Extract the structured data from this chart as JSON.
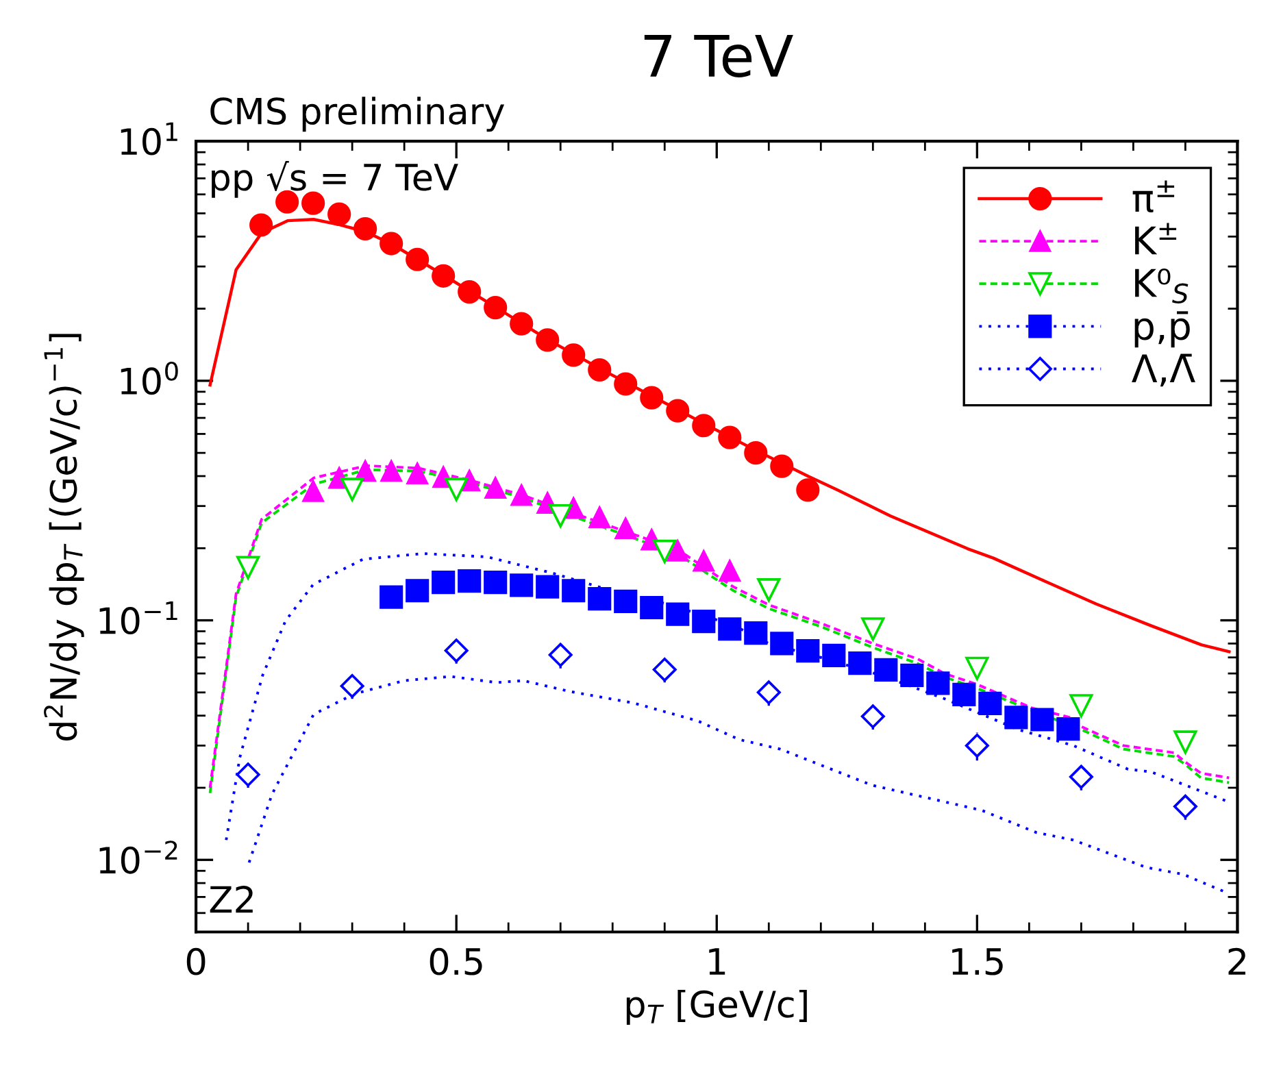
{
  "chart_data": {
    "type": "scatter",
    "title": "7 TeV",
    "xlabel": "p$_{T}$ [GeV/c]",
    "ylabel": "d$^{2}$N/dy dp$_{T}$ [(GeV/c)$^{−1}$]",
    "annotations": [
      "CMS preliminary",
      "pp √s = 7 TeV",
      "Z2"
    ],
    "log": "y",
    "xlim": [
      0,
      2
    ],
    "ylim": [
      0.005,
      10
    ],
    "xticks": [
      0,
      0.5,
      1,
      1.5,
      2
    ],
    "yticks": [
      {
        "value": 0.01,
        "label": "10$^{−2}$"
      },
      {
        "value": 0.1,
        "label": "10$^{−1}$"
      },
      {
        "value": 1,
        "label": "10$^{0}$"
      },
      {
        "value": 10,
        "label": "10$^{1}$"
      }
    ],
    "grid": false,
    "legend": "top right",
    "series": [
      {
        "type": "line",
        "color": "#ff0000",
        "line_style": "solid",
        "marker": "none",
        "x": [
          0.027,
          0.077,
          0.126,
          0.176,
          0.226,
          0.276,
          0.327,
          0.377,
          0.477,
          0.577,
          0.677,
          0.777,
          0.877,
          0.977,
          1.077,
          1.175,
          1.232,
          1.333,
          1.482,
          1.531,
          1.623,
          1.729,
          1.834,
          1.931,
          1.984
        ],
        "values": [
          0.96,
          2.91,
          4.14,
          4.66,
          4.72,
          4.48,
          4.18,
          3.71,
          2.75,
          2.02,
          1.48,
          1.12,
          0.86,
          0.66,
          0.51,
          0.4,
          0.35,
          0.273,
          0.199,
          0.182,
          0.148,
          0.117,
          0.095,
          0.079,
          0.074
        ]
      },
      {
        "type": "line",
        "color": "#ff00ff",
        "line_style": "dashed",
        "marker": "none",
        "x": [
          0.027,
          0.077,
          0.126,
          0.226,
          0.327,
          0.427,
          0.527,
          0.627,
          0.727,
          0.827,
          0.927,
          1.032,
          1.1,
          1.201,
          1.3,
          1.386,
          1.437,
          1.5,
          1.606,
          1.685,
          1.7,
          1.781,
          1.878,
          1.9,
          1.93,
          1.984
        ],
        "values": [
          0.02,
          0.129,
          0.264,
          0.393,
          0.442,
          0.432,
          0.384,
          0.333,
          0.279,
          0.234,
          0.196,
          0.138,
          0.116,
          0.097,
          0.08,
          0.069,
          0.06,
          0.054,
          0.043,
          0.039,
          0.036,
          0.03,
          0.028,
          0.0256,
          0.023,
          0.022
        ]
      },
      {
        "type": "line",
        "color": "#00dd00",
        "line_style": "dashed",
        "marker": "none",
        "x": [
          0.027,
          0.077,
          0.126,
          0.226,
          0.327,
          0.427,
          0.527,
          0.627,
          0.727,
          0.827,
          0.927,
          1.032,
          1.1,
          1.201,
          1.3,
          1.386,
          1.437,
          1.5,
          1.606,
          1.685,
          1.7,
          1.781,
          1.878,
          1.9,
          1.93,
          1.984
        ],
        "values": [
          0.019,
          0.125,
          0.255,
          0.37,
          0.425,
          0.42,
          0.375,
          0.325,
          0.27,
          0.226,
          0.188,
          0.133,
          0.112,
          0.094,
          0.077,
          0.066,
          0.058,
          0.052,
          0.042,
          0.036,
          0.035,
          0.029,
          0.027,
          0.025,
          0.022,
          0.021
        ]
      },
      {
        "type": "line",
        "color": "#0000ff",
        "line_style": "dotted",
        "marker": "none",
        "x": [
          0.058,
          0.084,
          0.128,
          0.172,
          0.225,
          0.321,
          0.436,
          0.559,
          0.682,
          0.788,
          0.911,
          1.034,
          1.1,
          1.21,
          1.315,
          1.438,
          1.579,
          1.685,
          1.79,
          1.834,
          1.913,
          1.979
        ],
        "values": [
          0.0121,
          0.0267,
          0.059,
          0.0996,
          0.141,
          0.18,
          0.19,
          0.184,
          0.158,
          0.135,
          0.116,
          0.095,
          0.08,
          0.069,
          0.059,
          0.047,
          0.035,
          0.03,
          0.0239,
          0.0233,
          0.02,
          0.0176
        ]
      },
      {
        "type": "line",
        "color": "#0000ff",
        "line_style": "dotted",
        "marker": "none",
        "x": [
          0.102,
          0.146,
          0.226,
          0.304,
          0.4,
          0.489,
          0.577,
          0.629,
          0.717,
          0.84,
          0.964,
          1.043,
          1.122,
          1.298,
          1.509,
          1.614,
          1.685,
          1.825,
          1.896,
          1.979
        ],
        "values": [
          0.00975,
          0.0188,
          0.0405,
          0.0493,
          0.056,
          0.0583,
          0.055,
          0.056,
          0.0505,
          0.0452,
          0.038,
          0.0318,
          0.029,
          0.0205,
          0.0161,
          0.013,
          0.0121,
          0.0093,
          0.0087,
          0.0073
        ]
      },
      {
        "name": "π$^{±}$",
        "color": "#ff0000",
        "marker": "circle",
        "x": [
          0.125,
          0.175,
          0.225,
          0.275,
          0.325,
          0.375,
          0.425,
          0.475,
          0.525,
          0.575,
          0.625,
          0.675,
          0.725,
          0.775,
          0.825,
          0.875,
          0.925,
          0.975,
          1.025,
          1.075,
          1.125,
          1.175
        ],
        "values": [
          4.47,
          5.58,
          5.51,
          4.96,
          4.31,
          3.74,
          3.21,
          2.74,
          2.35,
          2.02,
          1.73,
          1.48,
          1.28,
          1.11,
          0.97,
          0.85,
          0.75,
          0.65,
          0.58,
          0.5,
          0.44,
          0.35
        ]
      },
      {
        "name": "K$^{±}$",
        "color": "#ff00ff",
        "marker": "triangle",
        "x": [
          0.225,
          0.275,
          0.325,
          0.375,
          0.425,
          0.475,
          0.525,
          0.575,
          0.625,
          0.675,
          0.725,
          0.775,
          0.825,
          0.875,
          0.925,
          0.975,
          1.025
        ],
        "values": [
          0.346,
          0.393,
          0.42,
          0.42,
          0.41,
          0.396,
          0.383,
          0.357,
          0.333,
          0.309,
          0.294,
          0.269,
          0.242,
          0.217,
          0.195,
          0.177,
          0.161
        ]
      },
      {
        "name": "K⁰$_{S}$",
        "color": "#00dd00",
        "marker": "triangle_down",
        "x": [
          0.1,
          0.3,
          0.5,
          0.7,
          0.9,
          1.1,
          1.3,
          1.5,
          1.7,
          1.9
        ],
        "values": [
          0.166,
          0.352,
          0.352,
          0.273,
          0.194,
          0.134,
          0.092,
          0.063,
          0.044,
          0.031
        ]
      },
      {
        "name": "p,p̄",
        "color": "#0000ff",
        "marker": "square",
        "x": [
          0.375,
          0.425,
          0.475,
          0.525,
          0.575,
          0.625,
          0.675,
          0.725,
          0.775,
          0.825,
          0.875,
          0.925,
          0.975,
          1.025,
          1.075,
          1.125,
          1.175,
          1.225,
          1.275,
          1.325,
          1.375,
          1.425,
          1.475,
          1.525,
          1.575,
          1.625,
          1.675
        ],
        "values": [
          0.125,
          0.133,
          0.144,
          0.146,
          0.144,
          0.14,
          0.138,
          0.133,
          0.123,
          0.12,
          0.113,
          0.106,
          0.099,
          0.092,
          0.0885,
          0.08,
          0.0746,
          0.0713,
          0.0662,
          0.0621,
          0.0589,
          0.0546,
          0.049,
          0.045,
          0.0393,
          0.0385,
          0.0352
        ]
      },
      {
        "name": "Λ,Λ̄",
        "color": "#0000ff",
        "marker": "diamond",
        "x": [
          0.1,
          0.3,
          0.5,
          0.7,
          0.9,
          1.1,
          1.3,
          1.5,
          1.7,
          1.9
        ],
        "values": [
          0.0227,
          0.0532,
          0.0748,
          0.0717,
          0.0623,
          0.05,
          0.0397,
          0.03,
          0.0222,
          0.0167
        ],
        "errors": [
          [
            0.02,
            0.026
          ],
          [
            0.047,
            0.061
          ],
          [
            0.066,
            0.085
          ],
          [
            0.063,
            0.082
          ],
          [
            0.055,
            0.071
          ],
          [
            0.044,
            0.057
          ],
          [
            0.035,
            0.045
          ],
          [
            0.026,
            0.034
          ],
          [
            0.0195,
            0.0253
          ],
          [
            0.0147,
            0.019
          ]
        ]
      }
    ]
  }
}
